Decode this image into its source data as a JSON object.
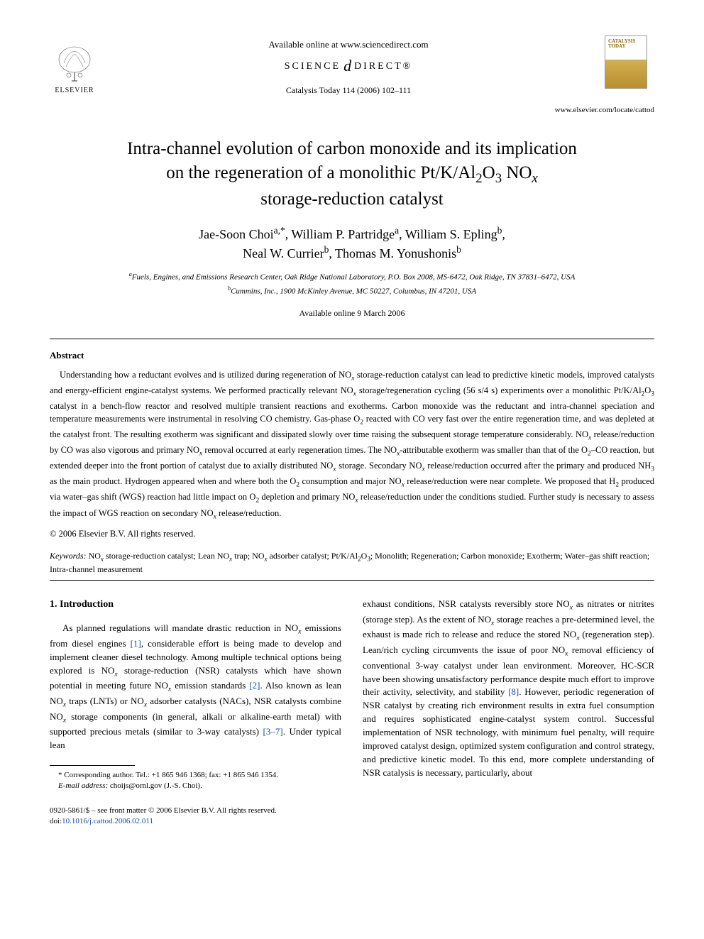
{
  "header": {
    "available_text": "Available online at www.sciencedirect.com",
    "science_direct_left": "SCIENCE",
    "science_direct_right": "DIRECT®",
    "journal_ref": "Catalysis Today 114 (2006) 102–111",
    "publisher_name": "ELSEVIER",
    "journal_logo_title": "CATALYSIS TODAY",
    "journal_url": "www.elsevier.com/locate/cattod"
  },
  "title_lines": {
    "l1": "Intra-channel evolution of carbon monoxide and its implication",
    "l2": "on the regeneration of a monolithic Pt/K/Al",
    "l2_sub": "2",
    "l2b": "O",
    "l2_sub2": "3",
    "l2c": " NO",
    "l2_subx": "x",
    "l3": "storage-reduction catalyst"
  },
  "authors": {
    "line1_a": "Jae-Soon Choi",
    "line1_a_sup": "a,*",
    "line1_b": ", William P. Partridge",
    "line1_b_sup": "a",
    "line1_c": ", William S. Epling",
    "line1_c_sup": "b",
    "line1_end": ",",
    "line2_a": "Neal W. Currier",
    "line2_a_sup": "b",
    "line2_b": ", Thomas M. Yonushonis",
    "line2_b_sup": "b"
  },
  "affiliations": {
    "a_sup": "a",
    "a_text": "Fuels, Engines, and Emissions Research Center, Oak Ridge National Laboratory, P.O. Box 2008, MS-6472, Oak Ridge, TN 37831–6472, USA",
    "b_sup": "b",
    "b_text": "Cummins, Inc., 1900 McKinley Avenue, MC 50227, Columbus, IN 47201, USA"
  },
  "available_date": "Available online 9 March 2006",
  "abstract": {
    "heading": "Abstract",
    "body": "Understanding how a reductant evolves and is utilized during regeneration of NOx storage-reduction catalyst can lead to predictive kinetic models, improved catalysts and energy-efficient engine-catalyst systems. We performed practically relevant NOx storage/regeneration cycling (56 s/4 s) experiments over a monolithic Pt/K/Al2O3 catalyst in a bench-flow reactor and resolved multiple transient reactions and exotherms. Carbon monoxide was the reductant and intra-channel speciation and temperature measurements were instrumental in resolving CO chemistry. Gas-phase O2 reacted with CO very fast over the entire regeneration time, and was depleted at the catalyst front. The resulting exotherm was significant and dissipated slowly over time raising the subsequent storage temperature considerably. NOx release/reduction by CO was also vigorous and primary NOx removal occurred at early regeneration times. The NOx-attributable exotherm was smaller than that of the O2–CO reaction, but extended deeper into the front portion of catalyst due to axially distributed NOx storage. Secondary NOx release/reduction occurred after the primary and produced NH3 as the main product. Hydrogen appeared when and where both the O2 consumption and major NOx release/reduction were near complete. We proposed that H2 produced via water–gas shift (WGS) reaction had little impact on O2 depletion and primary NOx release/reduction under the conditions studied. Further study is necessary to assess the impact of WGS reaction on secondary NOx release/reduction.",
    "copyright": "© 2006 Elsevier B.V. All rights reserved."
  },
  "keywords": {
    "label": "Keywords:",
    "text": " NOx storage-reduction catalyst; Lean NOx trap; NOx adsorber catalyst; Pt/K/Al2O3; Monolith; Regeneration; Carbon monoxide; Exotherm; Water–gas shift reaction; Intra-channel measurement"
  },
  "intro": {
    "heading": "1. Introduction",
    "col1": "As planned regulations will mandate drastic reduction in NOx emissions from diesel engines [1], considerable effort is being made to develop and implement cleaner diesel technology. Among multiple technical options being explored is NOx storage-reduction (NSR) catalysts which have shown potential in meeting future NOx emission standards [2]. Also known as lean NOx traps (LNTs) or NOx adsorber catalysts (NACs), NSR catalysts combine NOx storage components (in general, alkali or alkaline-earth metal) with supported precious metals (similar to 3-way catalysts) [3–7]. Under typical lean",
    "col2": "exhaust conditions, NSR catalysts reversibly store NOx as nitrates or nitrites (storage step). As the extent of NOx storage reaches a pre-determined level, the exhaust is made rich to release and reduce the stored NOx (regeneration step). Lean/rich cycling circumvents the issue of poor NOx removal efficiency of conventional 3-way catalyst under lean environment. Moreover, HC-SCR have been showing unsatisfactory performance despite much effort to improve their activity, selectivity, and stability [8]. However, periodic regeneration of NSR catalyst by creating rich environment results in extra fuel consumption and requires sophisticated engine-catalyst system control. Successful implementation of NSR technology, with minimum fuel penalty, will require improved catalyst design, optimized system configuration and control strategy, and predictive kinetic model. To this end, more complete understanding of NSR catalysis is necessary, particularly, about"
  },
  "footnote": {
    "corr": "* Corresponding author. Tel.: +1 865 946 1368; fax: +1 865 946 1354.",
    "email_label": "E-mail address:",
    "email": " choijs@ornl.gov (J.-S. Choi)."
  },
  "footer": {
    "issn": "0920-5861/$ – see front matter © 2006 Elsevier B.V. All rights reserved.",
    "doi_label": "doi:",
    "doi": "10.1016/j.cattod.2006.02.011"
  },
  "colors": {
    "link": "#1a4aa8",
    "text": "#000000",
    "background": "#ffffff"
  }
}
